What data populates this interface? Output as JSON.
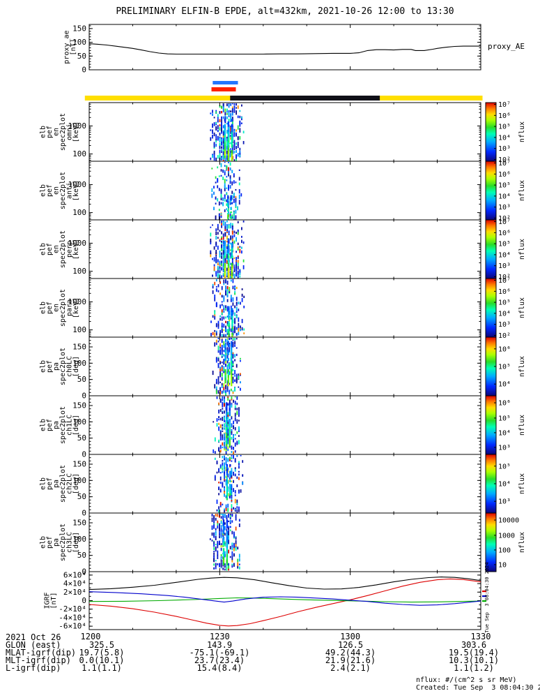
{
  "title": "PRELIMINARY ELFIN-B EPDE, alt=432km, 2021-10-26 12:00 to 13:30",
  "side_timestamp": "Tue Sep  3 08:04:30 2024",
  "time_axis": {
    "ticks_min": [
      0,
      30,
      60,
      90
    ],
    "tick_labels": [
      "1200",
      "1230",
      "1300",
      "1330"
    ],
    "minor_step_min": 10
  },
  "footer": {
    "date_label": "2021 Oct 26",
    "rows": [
      {
        "label": "GLON (east)",
        "values": [
          "325.5",
          "143.9",
          "126.5",
          "303.6"
        ]
      },
      {
        "label": "MLAT-igrf(dip)",
        "values": [
          "19.7(5.8)",
          "-75.1(-69.1)",
          "49.2(44.3)",
          "19.5(19.4)"
        ]
      },
      {
        "label": "MLT-igrf(dip)",
        "values": [
          "0.0(10.1)",
          "23.7(23.4)",
          "21.9(21.6)",
          "10.3(10.1)"
        ]
      },
      {
        "label": "L-igrf(dip)",
        "values": [
          "1.1(1.1)",
          "15.4(8.4)",
          "2.4(2.1)",
          "1.1(1.2)"
        ]
      }
    ],
    "nflux_note": "nflux: #/(cm^2 s sr MeV)",
    "created_note": "Created: Tue Sep  3 08:04:30 2024"
  },
  "chart_data": [
    {
      "id": "proxy_ae",
      "type": "line",
      "title_right": "proxy_AE",
      "ylabel_lines": [
        "proxy_ae",
        "[nT]"
      ],
      "ylim": [
        0,
        165
      ],
      "yticks": [
        0,
        50,
        100,
        150
      ],
      "ytick_labels": [
        "0",
        "50",
        "100",
        "150"
      ],
      "minor_step": 10,
      "line_color": "#000000",
      "x": [
        0,
        2,
        4,
        6,
        8,
        10,
        12,
        14,
        16,
        18,
        20,
        24,
        28,
        32,
        36,
        40,
        44,
        48,
        52,
        56,
        60,
        62,
        63,
        64,
        66,
        68,
        70,
        72,
        74,
        75,
        77,
        79,
        80,
        82,
        84,
        86,
        88,
        90
      ],
      "y": [
        95,
        93,
        90,
        86,
        82,
        78,
        72,
        66,
        61,
        58,
        57,
        57,
        57,
        57,
        57,
        57,
        58,
        58,
        59,
        60,
        60,
        62,
        66,
        70,
        73,
        73,
        72,
        74,
        74,
        70,
        70,
        75,
        78,
        82,
        85,
        86,
        86,
        86
      ]
    },
    {
      "id": "zone_bars",
      "type": "bars",
      "bars": [
        {
          "name": "zone-marker-blue",
          "color": "#2277ff",
          "t0": 28.4,
          "t1": 34.2,
          "row": 0
        },
        {
          "name": "zone-marker-red",
          "color": "#ff2200",
          "t0": 28.1,
          "t1": 33.7,
          "row": 1
        },
        {
          "name": "status-bar-yellow",
          "color": "#ffdf00",
          "t0": -1.0,
          "t1": 90.4,
          "row": 2
        },
        {
          "name": "status-bar-black",
          "color": "#101018",
          "t0": 32.4,
          "t1": 66.8,
          "row": 2
        }
      ]
    },
    {
      "id": "en_omni",
      "type": "spectrogram",
      "ylabel_lines": [
        "elb",
        "pef",
        "en",
        "spec2plot",
        "omni",
        "[keV]"
      ],
      "yscale": "log",
      "ylim": [
        55,
        6800
      ],
      "yticks": [
        100,
        1000
      ],
      "ytick_labels": [
        "100",
        "1000"
      ],
      "colorbar": {
        "label": "nflux",
        "ticks": [
          "10⁷",
          "10⁶",
          "10⁵",
          "10⁴",
          "10³",
          "10²"
        ],
        "fracs": [
          0.03,
          0.218,
          0.406,
          0.594,
          0.782,
          0.97
        ]
      },
      "burst": {
        "seed": 11,
        "n": 320,
        "t_center": 31.7,
        "t_spread": 2.4,
        "col_t": [
          31.2,
          32.0,
          32.8
        ],
        "col": [
          58,
          1800
        ],
        "bright": 0.72
      }
    },
    {
      "id": "en_anti",
      "type": "spectrogram",
      "ylabel_lines": [
        "elb",
        "pef",
        "en",
        "spec2plot",
        "anti",
        "[keV]"
      ],
      "yscale": "log",
      "ylim": [
        55,
        6800
      ],
      "yticks": [
        100,
        1000
      ],
      "ytick_labels": [
        "100",
        "1000"
      ],
      "colorbar": {
        "label": "nflux",
        "ticks": [
          "10⁷",
          "10⁶",
          "10⁵",
          "10⁴",
          "10³",
          "10²"
        ],
        "fracs": [
          0.03,
          0.218,
          0.406,
          0.594,
          0.782,
          0.97
        ]
      },
      "burst": {
        "seed": 22,
        "n": 150,
        "t_center": 31.6,
        "t_spread": 2.4,
        "col_t": [
          31.9,
          32.6
        ],
        "col": [
          60,
          420
        ],
        "bright": 0.6
      }
    },
    {
      "id": "en_perp",
      "type": "spectrogram",
      "ylabel_lines": [
        "elb",
        "pef",
        "en",
        "spec2plot",
        "perp",
        "[keV]"
      ],
      "yscale": "log",
      "ylim": [
        55,
        6800
      ],
      "yticks": [
        100,
        1000
      ],
      "ytick_labels": [
        "100",
        "1000"
      ],
      "colorbar": {
        "label": "nflux",
        "ticks": [
          "10⁷",
          "10⁶",
          "10⁵",
          "10⁴",
          "10³",
          "10²"
        ],
        "fracs": [
          0.03,
          0.218,
          0.406,
          0.594,
          0.782,
          0.97
        ]
      },
      "burst": {
        "seed": 33,
        "n": 300,
        "t_center": 31.7,
        "t_spread": 2.5,
        "col_t": [
          31.2,
          32.0,
          32.8
        ],
        "col": [
          58,
          1500
        ],
        "bright": 0.75
      }
    },
    {
      "id": "en_para",
      "type": "spectrogram",
      "ylabel_lines": [
        "elb",
        "pef",
        "en",
        "spec2plot",
        "para",
        "[keV]"
      ],
      "yscale": "log",
      "ylim": [
        55,
        6800
      ],
      "yticks": [
        100,
        1000
      ],
      "ytick_labels": [
        "100",
        "1000"
      ],
      "colorbar": {
        "label": "nflux",
        "ticks": [
          "10⁷",
          "10⁶",
          "10⁵",
          "10⁴",
          "10³",
          "10²"
        ],
        "fracs": [
          0.03,
          0.218,
          0.406,
          0.594,
          0.782,
          0.97
        ]
      },
      "burst": {
        "seed": 44,
        "n": 210,
        "t_center": 31.8,
        "t_spread": 2.4,
        "col_t": [
          32.1,
          32.9
        ],
        "col": [
          58,
          700
        ],
        "bright": 0.65
      }
    },
    {
      "id": "pa_ch0lc",
      "type": "spectrogram",
      "ylabel_lines": [
        "elb",
        "pef",
        "pa",
        "spec2plot",
        "ch0LC",
        "[deg]"
      ],
      "yscale": "linear",
      "ylim": [
        0,
        180
      ],
      "yticks": [
        0,
        50,
        100,
        150
      ],
      "ytick_labels": [
        "0",
        "50",
        "100",
        "150"
      ],
      "minor_step": 10,
      "colorbar": {
        "label": "nflux",
        "ticks": [
          "10⁶",
          "10⁵",
          "10⁴"
        ],
        "fracs": [
          0.2,
          0.5,
          0.8
        ]
      },
      "burst": {
        "seed": 55,
        "n": 240,
        "t_center": 31.8,
        "t_spread": 2.0,
        "col_t": [
          31.3,
          32.0,
          32.7
        ],
        "col": [
          30,
          168
        ],
        "bright": 0.7
      }
    },
    {
      "id": "pa_ch1lc",
      "type": "spectrogram",
      "ylabel_lines": [
        "elb",
        "pef",
        "pa",
        "spec2plot",
        "ch1LC",
        "[deg]"
      ],
      "yscale": "linear",
      "ylim": [
        0,
        180
      ],
      "yticks": [
        0,
        50,
        100,
        150
      ],
      "ytick_labels": [
        "0",
        "50",
        "100",
        "150"
      ],
      "minor_step": 10,
      "colorbar": {
        "label": "nflux",
        "ticks": [
          "10⁶",
          "10⁵",
          "10⁴",
          "10³"
        ],
        "fracs": [
          0.12,
          0.38,
          0.63,
          0.88
        ]
      },
      "burst": {
        "seed": 66,
        "n": 200,
        "t_center": 31.9,
        "t_spread": 2.0,
        "col_t": [
          31.6,
          32.3
        ],
        "col": [
          25,
          160
        ],
        "bright": 0.6
      }
    },
    {
      "id": "pa_ch2lc",
      "type": "spectrogram",
      "ylabel_lines": [
        "elb",
        "pef",
        "pa",
        "spec2plot",
        "ch2LC",
        "[deg]"
      ],
      "yscale": "linear",
      "ylim": [
        0,
        180
      ],
      "yticks": [
        0,
        50,
        100,
        150
      ],
      "ytick_labels": [
        "0",
        "50",
        "100",
        "150"
      ],
      "minor_step": 10,
      "colorbar": {
        "label": "nflux",
        "ticks": [
          "10⁵",
          "10⁴",
          "10³"
        ],
        "fracs": [
          0.2,
          0.5,
          0.8
        ]
      },
      "burst": {
        "seed": 77,
        "n": 170,
        "t_center": 31.9,
        "t_spread": 2.1,
        "col_t": [
          31.7,
          32.4
        ],
        "col": [
          40,
          150
        ],
        "bright": 0.55
      }
    },
    {
      "id": "pa_ch3lc",
      "type": "spectrogram",
      "ylabel_lines": [
        "elb",
        "pef",
        "pa",
        "spec2plot",
        "ch3LC",
        "[deg]"
      ],
      "yscale": "linear",
      "ylim": [
        0,
        180
      ],
      "yticks": [
        0,
        50,
        100,
        150
      ],
      "ytick_labels": [
        "0",
        "50",
        "100",
        "150"
      ],
      "minor_step": 10,
      "colorbar": {
        "label": "nflux",
        "ticks": [
          "10000",
          "1000",
          "100",
          "10"
        ],
        "fracs": [
          0.12,
          0.38,
          0.63,
          0.88
        ]
      },
      "burst": {
        "seed": 88,
        "n": 230,
        "t_center": 31.2,
        "t_spread": 2.3,
        "col_t": [
          30.9,
          31.7
        ],
        "col": [
          20,
          160
        ],
        "bright": 0.6
      }
    },
    {
      "id": "igrf",
      "type": "multiline",
      "ylabel_lines": [
        "IGRF",
        "[nT]"
      ],
      "ylim": [
        -68000,
        68000
      ],
      "yticks": [
        60000,
        40000,
        20000,
        0,
        -20000,
        -40000,
        -60000
      ],
      "ytick_labels": [
        "6×10⁴",
        "4×10⁴",
        "2×10⁴",
        "0",
        "-2×10⁴",
        "-4×10⁴",
        "-6×10⁴"
      ],
      "minor_step": 10000,
      "legend_marks": [
        "#dd0000",
        "#0000cc",
        "#00aa00"
      ],
      "series": [
        {
          "name": "btotal",
          "color": "#000000",
          "x": [
            0,
            5,
            10,
            15,
            20,
            25,
            28,
            31,
            34,
            38,
            42,
            46,
            50,
            54,
            58,
            62,
            66,
            70,
            74,
            78,
            81,
            84,
            87,
            90
          ],
          "y": [
            26000,
            28000,
            31500,
            36000,
            43000,
            50000,
            53000,
            54500,
            53500,
            49000,
            42000,
            35000,
            29500,
            27000,
            27500,
            31000,
            37000,
            44000,
            50000,
            54000,
            55500,
            54500,
            51500,
            47000
          ]
        },
        {
          "name": "br",
          "color": "#dd0000",
          "x": [
            0,
            5,
            10,
            15,
            20,
            24,
            27,
            30,
            32,
            34,
            37,
            40,
            44,
            48,
            52,
            56,
            60,
            64,
            68,
            72,
            76,
            80,
            83,
            86,
            90
          ],
          "y": [
            -9000,
            -13000,
            -19000,
            -27000,
            -37000,
            -46000,
            -53000,
            -58000,
            -59500,
            -58500,
            -54000,
            -47000,
            -37000,
            -26000,
            -16000,
            -7000,
            2000,
            12000,
            23000,
            34000,
            43000,
            49000,
            51000,
            49500,
            44000
          ]
        },
        {
          "name": "bp",
          "color": "#00aa00",
          "x": [
            0,
            8,
            16,
            24,
            30,
            34,
            38,
            44,
            50,
            56,
            62,
            68,
            74,
            80,
            85,
            90
          ],
          "y": [
            -2000,
            -1500,
            0,
            2500,
            5000,
            6500,
            6000,
            4000,
            2000,
            500,
            -1000,
            -2500,
            -3500,
            -3000,
            -2000,
            -1000
          ]
        },
        {
          "name": "bz",
          "color": "#0000cc",
          "x": [
            0,
            6,
            12,
            18,
            22,
            26,
            29,
            31,
            33,
            36,
            40,
            44,
            48,
            52,
            56,
            60,
            64,
            68,
            72,
            76,
            80,
            84,
            87,
            90
          ],
          "y": [
            21000,
            19000,
            16000,
            12000,
            8000,
            3000,
            -1000,
            -3500,
            -1000,
            4000,
            8000,
            9000,
            8000,
            6000,
            4000,
            1000,
            -2000,
            -6000,
            -9000,
            -11000,
            -10000,
            -7000,
            -4000,
            -1000
          ]
        }
      ]
    }
  ]
}
